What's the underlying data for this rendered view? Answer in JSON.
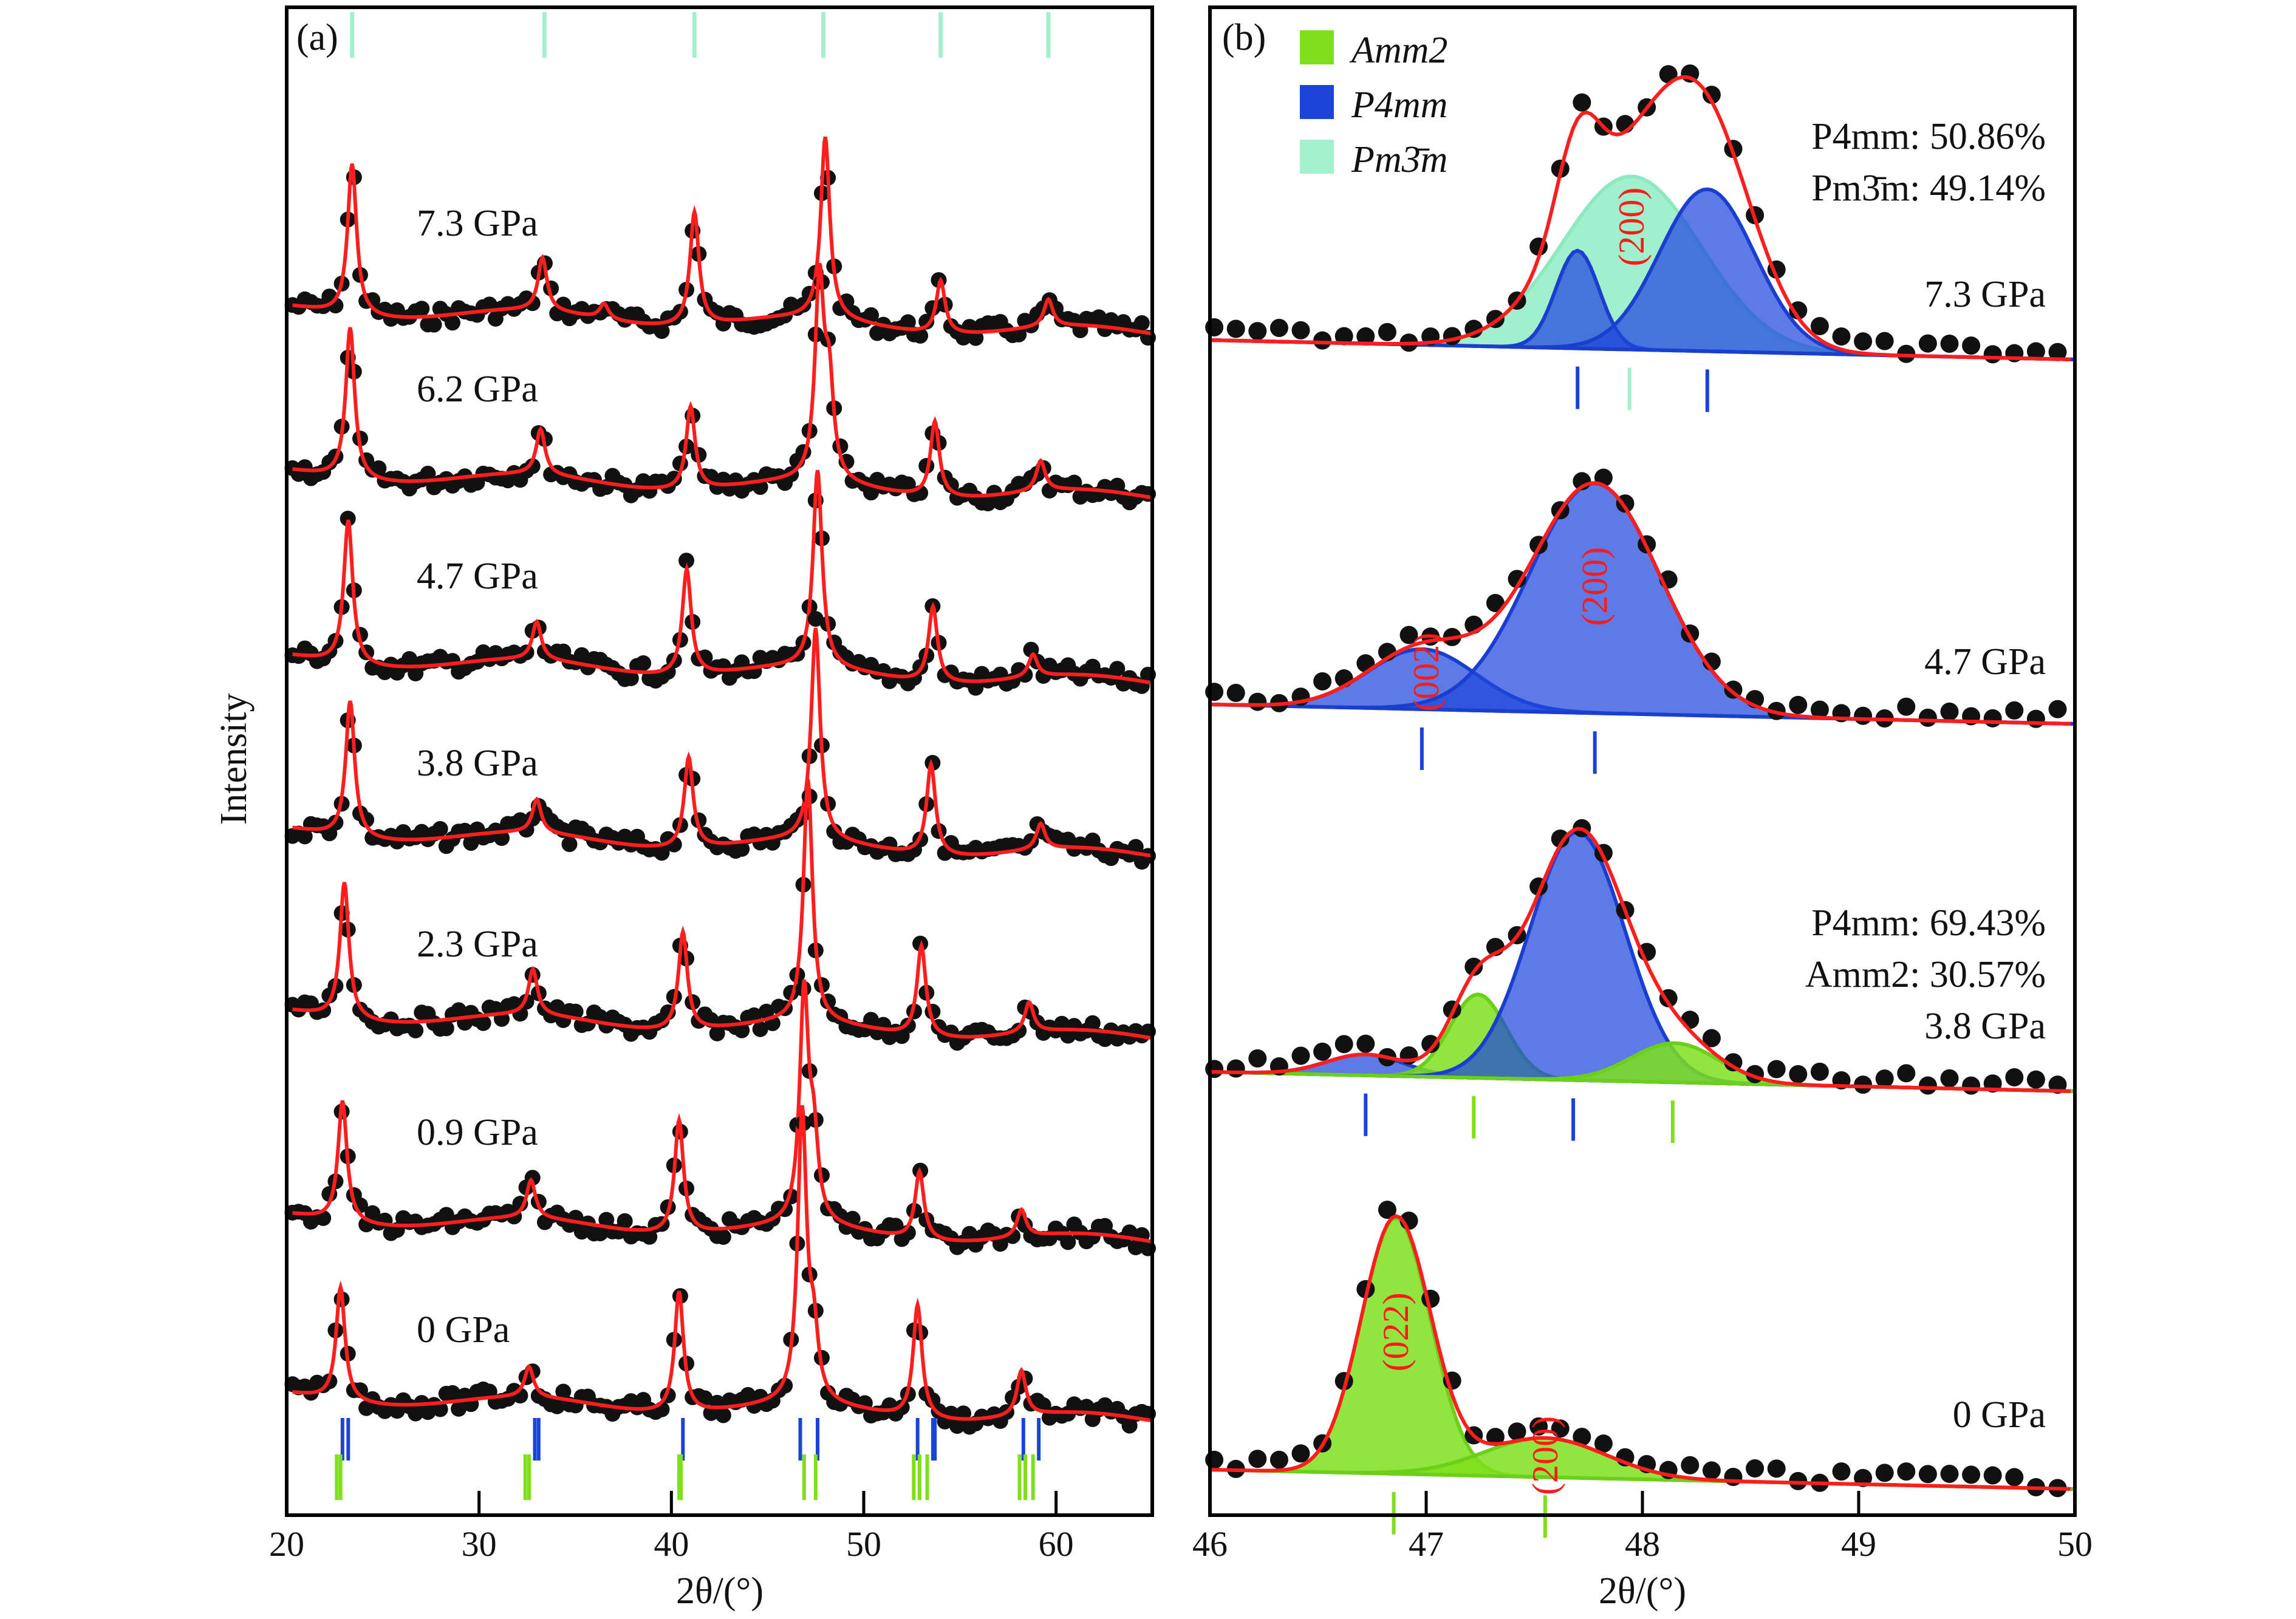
{
  "chart_data": [
    {
      "type": "line",
      "panel": "(a)",
      "xlabel": "2θ/(°)",
      "ylabel": "Intensity",
      "xlim": [
        20,
        65
      ],
      "xticks": [
        20,
        30,
        40,
        50,
        60
      ],
      "series": [
        {
          "name": "7.3 GPa",
          "peaks": [
            [
              23.4,
              1.0
            ],
            [
              33.3,
              0.35
            ],
            [
              36.5,
              0.1
            ],
            [
              41.2,
              0.75
            ],
            [
              48.0,
              1.2
            ],
            [
              54.0,
              0.35
            ],
            [
              59.6,
              0.18
            ]
          ]
        },
        {
          "name": "6.2 GPa",
          "peaks": [
            [
              23.3,
              1.0
            ],
            [
              33.2,
              0.3
            ],
            [
              41.0,
              0.55
            ],
            [
              47.7,
              1.3
            ],
            [
              48.2,
              0.6
            ],
            [
              53.7,
              0.5
            ],
            [
              59.2,
              0.2
            ]
          ]
        },
        {
          "name": "4.7 GPa",
          "peaks": [
            [
              23.2,
              0.95
            ],
            [
              33.0,
              0.25
            ],
            [
              40.8,
              0.7
            ],
            [
              47.6,
              1.3
            ],
            [
              53.6,
              0.5
            ],
            [
              58.8,
              0.15
            ]
          ]
        },
        {
          "name": "3.8 GPa",
          "peaks": [
            [
              23.3,
              0.9
            ],
            [
              33.0,
              0.22
            ],
            [
              40.9,
              0.6
            ],
            [
              47.5,
              1.4
            ],
            [
              53.5,
              0.6
            ],
            [
              59.2,
              0.17
            ]
          ]
        },
        {
          "name": "2.3 GPa",
          "peaks": [
            [
              23.0,
              0.9
            ],
            [
              32.8,
              0.3
            ],
            [
              40.6,
              0.65
            ],
            [
              47.1,
              1.6
            ],
            [
              53.0,
              0.6
            ],
            [
              58.6,
              0.2
            ]
          ]
        },
        {
          "name": "0.9 GPa",
          "peaks": [
            [
              22.9,
              0.8
            ],
            [
              32.7,
              0.25
            ],
            [
              40.4,
              0.75
            ],
            [
              46.9,
              1.5
            ],
            [
              47.4,
              0.5
            ],
            [
              52.9,
              0.45
            ],
            [
              58.2,
              0.18
            ]
          ]
        },
        {
          "name": "0 GPa",
          "peaks": [
            [
              22.8,
              0.75
            ],
            [
              32.6,
              0.2
            ],
            [
              40.4,
              0.8
            ],
            [
              46.8,
              1.9
            ],
            [
              47.4,
              0.4
            ],
            [
              52.8,
              0.75
            ],
            [
              58.2,
              0.3
            ]
          ]
        }
      ],
      "reference_ticks": {
        "Pm3m": [
          23.4,
          33.4,
          41.2,
          47.9,
          54.0,
          59.6
        ],
        "P4mm": [
          22.9,
          23.2,
          32.9,
          33.1,
          40.6,
          46.7,
          47.6,
          52.8,
          53.6,
          53.7,
          58.3,
          59.1
        ],
        "Amm2": [
          22.6,
          22.8,
          32.4,
          32.6,
          40.4,
          40.5,
          46.9,
          47.5,
          52.6,
          52.9,
          53.3,
          58.1,
          58.4,
          58.8
        ]
      }
    },
    {
      "type": "area",
      "panel": "(b)",
      "xlabel": "2θ/(°)",
      "xlim": [
        46,
        50
      ],
      "xticks": [
        46,
        47,
        48,
        49,
        50
      ],
      "legend": {
        "placement": "top-left",
        "entries": [
          {
            "name": "Amm2",
            "color": "#7ee01c"
          },
          {
            "name": "P4mm",
            "color": "#1a44d8"
          },
          {
            "name": "Pm3m",
            "display": "Pm3̄m",
            "color": "#a4f0cc"
          }
        ]
      },
      "series": [
        {
          "name": "7.3 GPa",
          "components": [
            {
              "phase": "Pm3m",
              "center": 47.95,
              "width": 0.32,
              "amp": 0.62
            },
            {
              "phase": "P4mm",
              "center": 47.7,
              "width": 0.1,
              "amp": 0.35
            },
            {
              "phase": "P4mm",
              "center": 48.3,
              "width": 0.22,
              "amp": 0.58
            }
          ],
          "ticks": [
            {
              "phase": "P4mm",
              "x": 47.7
            },
            {
              "phase": "Pm3m",
              "x": 47.94
            },
            {
              "phase": "P4mm",
              "x": 48.3
            }
          ],
          "fractions": [
            "P4mm: 50.86%",
            "Pm3̄m: 49.14%"
          ],
          "hkl": [
            {
              "text": "(200)",
              "x": 47.95
            }
          ]
        },
        {
          "name": "4.7 GPa",
          "components": [
            {
              "phase": "P4mm",
              "center": 46.98,
              "width": 0.25,
              "amp": 0.23
            },
            {
              "phase": "P4mm",
              "center": 47.78,
              "width": 0.3,
              "amp": 0.88
            }
          ],
          "ticks": [
            {
              "phase": "P4mm",
              "x": 46.98
            },
            {
              "phase": "P4mm",
              "x": 47.78
            }
          ],
          "hkl": [
            {
              "text": "(002)",
              "x": 47.0
            },
            {
              "text": "(200)",
              "x": 47.78
            }
          ]
        },
        {
          "name": "3.8 GPa",
          "components": [
            {
              "phase": "P4mm",
              "center": 46.72,
              "width": 0.18,
              "amp": 0.08
            },
            {
              "phase": "Amm2",
              "center": 47.24,
              "width": 0.13,
              "amp": 0.32
            },
            {
              "phase": "P4mm",
              "center": 47.7,
              "width": 0.22,
              "amp": 0.95
            },
            {
              "phase": "Amm2",
              "center": 48.15,
              "width": 0.2,
              "amp": 0.15
            }
          ],
          "ticks": [
            {
              "phase": "P4mm",
              "x": 46.72
            },
            {
              "phase": "Amm2",
              "x": 47.22
            },
            {
              "phase": "P4mm",
              "x": 47.68
            },
            {
              "phase": "Amm2",
              "x": 48.14
            }
          ],
          "fractions": [
            "P4mm: 69.43%",
            "Amm2: 30.57%"
          ]
        },
        {
          "name": "0 GPa",
          "components": [
            {
              "phase": "Amm2",
              "center": 46.86,
              "width": 0.16,
              "amp": 0.98
            },
            {
              "phase": "Amm2",
              "center": 47.55,
              "width": 0.28,
              "amp": 0.15
            }
          ],
          "ticks": [
            {
              "phase": "Amm2",
              "x": 46.85
            },
            {
              "phase": "Amm2",
              "x": 47.55
            }
          ],
          "hkl": [
            {
              "text": "(022)",
              "x": 46.86
            },
            {
              "text": "(200)",
              "x": 47.55
            }
          ]
        }
      ]
    }
  ],
  "labels": {
    "panel_a": "(a)",
    "panel_b": "(b)",
    "ylabel": "Intensity",
    "xlabel_a": "2θ/(°)",
    "xlabel_b": "2θ/(°)",
    "legend": [
      "Amm2",
      "P4mm",
      "Pm3̄m"
    ]
  },
  "colors": {
    "fit": "#ff1e1e",
    "dots": "#111111",
    "Amm2": "#7ee01c",
    "P4mm": "#1a44d8",
    "Pm3m": "#a4f0cc"
  }
}
